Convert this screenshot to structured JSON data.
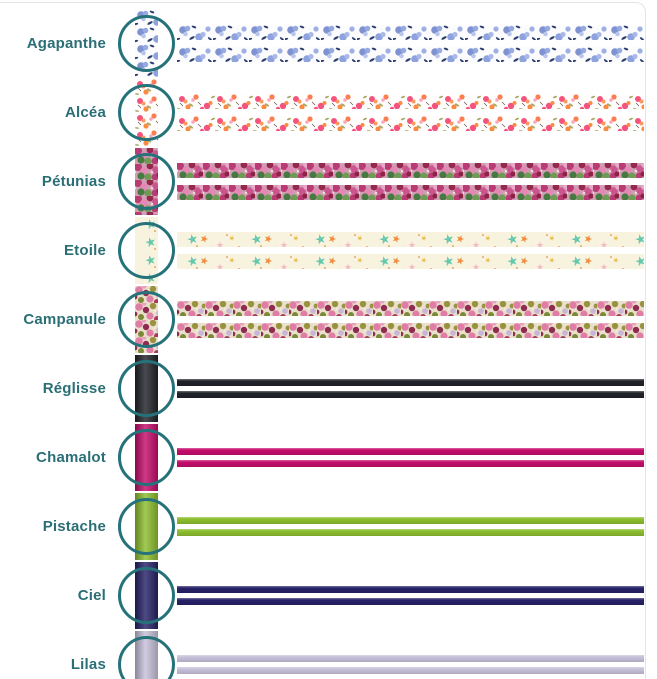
{
  "theme": {
    "accent_teal": "#2a6f75",
    "ring_teal": "#26727a",
    "panel_border": "#e4e4e4",
    "background": "#ffffff"
  },
  "rows": [
    {
      "label": "Agapanthe",
      "type": "pattern",
      "swatch": "agapanthe",
      "palette": [
        "#7e92d0",
        "#95a9e2",
        "#b9c6ec",
        "#2b4070",
        "#fcfcff"
      ]
    },
    {
      "label": "Alcéa",
      "type": "pattern",
      "swatch": "alcea",
      "palette": [
        "#f4537e",
        "#fd9960",
        "#fc7d4f",
        "#a7aa67",
        "#fffefd"
      ]
    },
    {
      "label": "Pétunias",
      "type": "pattern",
      "swatch": "petunias",
      "palette": [
        "#b83b74",
        "#e389b4",
        "#96274d",
        "#477a40",
        "#6f9c55"
      ]
    },
    {
      "label": "Etoile",
      "type": "pattern",
      "swatch": "etoile",
      "palette": [
        "#68c8ac",
        "#ef8a3e",
        "#f2b9c6",
        "#e3bb4a",
        "#f8f3df"
      ]
    },
    {
      "label": "Campanule",
      "type": "pattern",
      "swatch": "campanule",
      "palette": [
        "#e07da6",
        "#8e2c50",
        "#99923f",
        "#c9b5d8",
        "#7b8836"
      ]
    },
    {
      "label": "Réglisse",
      "type": "solid",
      "color": "#202329"
    },
    {
      "label": "Chamalot",
      "type": "solid",
      "color": "#c50d6c"
    },
    {
      "label": "Pistache",
      "type": "solid",
      "color": "#8dbe2f"
    },
    {
      "label": "Ciel",
      "type": "solid",
      "color": "#272268"
    },
    {
      "label": "Lilas",
      "type": "solid",
      "color": "#c7c1da"
    }
  ]
}
